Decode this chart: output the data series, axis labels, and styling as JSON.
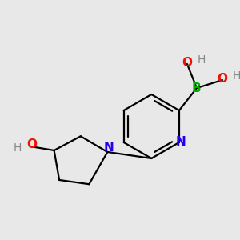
{
  "background_color": "#e8e8e8",
  "bond_color": "#000000",
  "bond_width": 1.6,
  "colors": {
    "B": "#00aa00",
    "O": "#ee1100",
    "N": "#2200ee",
    "H": "#888888",
    "C": "#000000"
  },
  "figsize": [
    3.0,
    3.0
  ],
  "dpi": 100
}
